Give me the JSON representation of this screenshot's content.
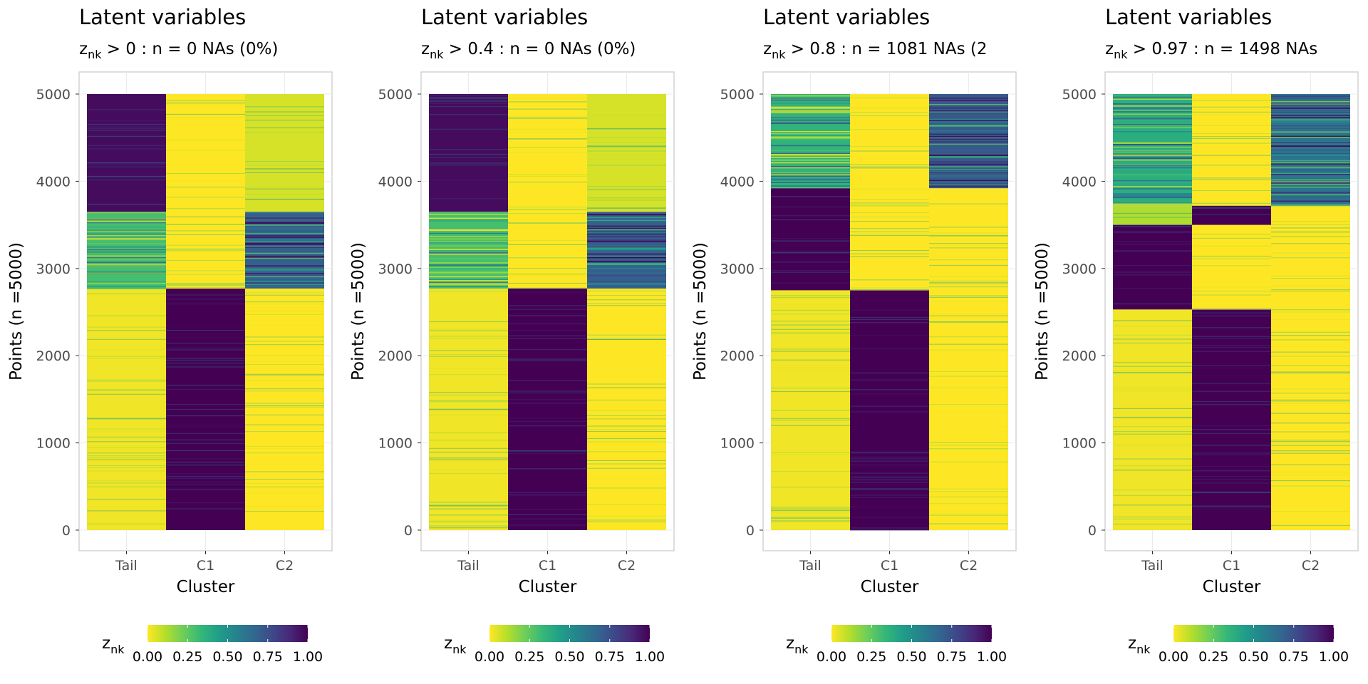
{
  "chart_data": [
    {
      "type": "heatmap",
      "title": "Latent variables",
      "subtitle": {
        "var": "z",
        "sub": "nk",
        "rest": " > 0 : n = 0  NAs (0%)"
      },
      "xlabel": "Cluster",
      "ylabel": "Points (n =5000)",
      "categories": [
        "Tail",
        "C1",
        "C2"
      ],
      "ylim": [
        0,
        5000
      ],
      "yticks": [
        0,
        1000,
        2000,
        3000,
        4000,
        5000
      ],
      "legend": {
        "title": "z",
        "title_sub": "nk",
        "ticks": [
          "0.00",
          "0.25",
          "0.50",
          "0.75",
          "1.00"
        ],
        "position": "bottom"
      },
      "blocks": [
        {
          "col": "Tail",
          "from": 0,
          "to": 2770,
          "value": 0.02
        },
        {
          "col": "Tail",
          "from": 2770,
          "to": 3650,
          "value": 0.3
        },
        {
          "col": "Tail",
          "from": 3650,
          "to": 5000,
          "value": 0.97
        },
        {
          "col": "C1",
          "from": 0,
          "to": 2770,
          "value": 1.0
        },
        {
          "col": "C1",
          "from": 2770,
          "to": 5000,
          "value": 0.0
        },
        {
          "col": "C2",
          "from": 0,
          "to": 2770,
          "value": 0.0
        },
        {
          "col": "C2",
          "from": 2770,
          "to": 3650,
          "value": 0.7
        },
        {
          "col": "C2",
          "from": 3650,
          "to": 5000,
          "value": 0.06
        }
      ]
    },
    {
      "type": "heatmap",
      "title": "Latent variables",
      "subtitle": {
        "var": "z",
        "sub": "nk",
        "rest": " > 0.4 : n = 0  NAs (0%)"
      },
      "xlabel": "Cluster",
      "ylabel": "Points (n =5000)",
      "categories": [
        "Tail",
        "C1",
        "C2"
      ],
      "ylim": [
        0,
        5000
      ],
      "yticks": [
        0,
        1000,
        2000,
        3000,
        4000,
        5000
      ],
      "legend": {
        "title": "z",
        "title_sub": "nk",
        "ticks": [
          "0.00",
          "0.25",
          "0.50",
          "0.75",
          "1.00"
        ],
        "position": "bottom"
      },
      "blocks": [
        {
          "col": "Tail",
          "from": 0,
          "to": 2770,
          "value": 0.02
        },
        {
          "col": "Tail",
          "from": 2770,
          "to": 3650,
          "value": 0.3
        },
        {
          "col": "Tail",
          "from": 3650,
          "to": 5000,
          "value": 0.97
        },
        {
          "col": "C1",
          "from": 0,
          "to": 2770,
          "value": 1.0
        },
        {
          "col": "C1",
          "from": 2770,
          "to": 5000,
          "value": 0.0
        },
        {
          "col": "C2",
          "from": 0,
          "to": 2770,
          "value": 0.0
        },
        {
          "col": "C2",
          "from": 2770,
          "to": 3650,
          "value": 0.7
        },
        {
          "col": "C2",
          "from": 3650,
          "to": 5000,
          "value": 0.06
        }
      ]
    },
    {
      "type": "heatmap",
      "title": "Latent variables",
      "subtitle": {
        "var": "z",
        "sub": "nk",
        "rest": " > 0.8 : n = 1081  NAs (2"
      },
      "xlabel": "Cluster",
      "ylabel": "Points (n =5000)",
      "categories": [
        "Tail",
        "C1",
        "C2"
      ],
      "ylim": [
        0,
        5000
      ],
      "yticks": [
        0,
        1000,
        2000,
        3000,
        4000,
        5000
      ],
      "legend": {
        "title": "z",
        "title_sub": "nk",
        "ticks": [
          "0.00",
          "0.25",
          "0.50",
          "0.75",
          "1.00"
        ],
        "position": "bottom"
      },
      "blocks": [
        {
          "col": "Tail",
          "from": 0,
          "to": 2750,
          "value": 0.02
        },
        {
          "col": "Tail",
          "from": 2750,
          "to": 3920,
          "value": 1.0
        },
        {
          "col": "Tail",
          "from": 3920,
          "to": 5000,
          "value": 0.35
        },
        {
          "col": "C1",
          "from": 0,
          "to": 2750,
          "value": 1.0
        },
        {
          "col": "C1",
          "from": 2750,
          "to": 5000,
          "value": 0.0
        },
        {
          "col": "C2",
          "from": 0,
          "to": 3920,
          "value": 0.0
        },
        {
          "col": "C2",
          "from": 3920,
          "to": 5000,
          "value": 0.72
        }
      ]
    },
    {
      "type": "heatmap",
      "title": "Latent variables",
      "subtitle": {
        "var": "z",
        "sub": "nk",
        "rest": " > 0.97 : n = 1498  NAs"
      },
      "xlabel": "Cluster",
      "ylabel": "Points (n =5000)",
      "categories": [
        "Tail",
        "C1",
        "C2"
      ],
      "ylim": [
        0,
        5000
      ],
      "yticks": [
        0,
        1000,
        2000,
        3000,
        4000,
        5000
      ],
      "legend": {
        "title": "z",
        "title_sub": "nk",
        "ticks": [
          "0.00",
          "0.25",
          "0.50",
          "0.75",
          "1.00"
        ],
        "position": "bottom"
      },
      "blocks": [
        {
          "col": "Tail",
          "from": 0,
          "to": 2530,
          "value": 0.02
        },
        {
          "col": "Tail",
          "from": 2530,
          "to": 3500,
          "value": 1.0
        },
        {
          "col": "Tail",
          "from": 3500,
          "to": 3720,
          "value": 0.12
        },
        {
          "col": "Tail",
          "from": 3720,
          "to": 5000,
          "value": 0.38
        },
        {
          "col": "C1",
          "from": 0,
          "to": 2530,
          "value": 1.0
        },
        {
          "col": "C1",
          "from": 2530,
          "to": 3500,
          "value": 0.0
        },
        {
          "col": "C1",
          "from": 3500,
          "to": 3720,
          "value": 1.0
        },
        {
          "col": "C1",
          "from": 3720,
          "to": 5000,
          "value": 0.0
        },
        {
          "col": "C2",
          "from": 0,
          "to": 3720,
          "value": 0.0
        },
        {
          "col": "C2",
          "from": 3720,
          "to": 5000,
          "value": 0.62
        }
      ]
    }
  ],
  "colors": {
    "viridis": [
      "#fde725",
      "#b5de2b",
      "#6ece58",
      "#35b779",
      "#1f9e89",
      "#26828e",
      "#31688e",
      "#3e4989",
      "#482878",
      "#440154"
    ],
    "panel_border": "#cccccc",
    "grid": "#ebebeb"
  }
}
